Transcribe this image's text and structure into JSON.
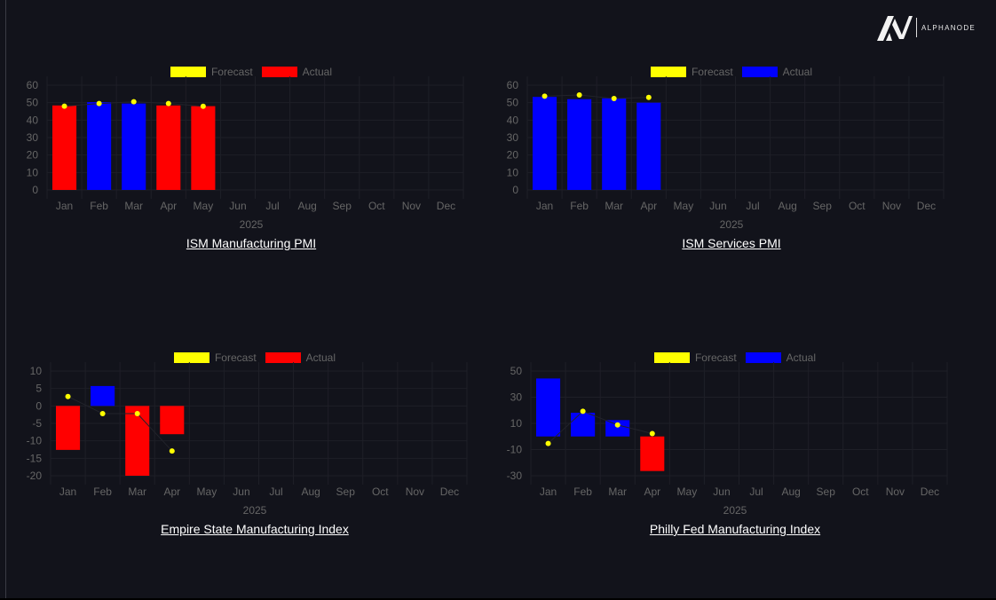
{
  "brand": {
    "name": "ALPHANODE",
    "logo_icon": "alphanode-logo-icon"
  },
  "colors": {
    "forecast": "#ffff00",
    "positive": "#0000ff",
    "negative": "#ff0000",
    "background": "#12131b",
    "grid": "#1e1f27",
    "text": "#666666"
  },
  "chart_data": [
    {
      "type": "bar",
      "title": "ISM Manufacturing PMI",
      "xlabel": "2025",
      "legend": [
        "Forecast",
        "Actual"
      ],
      "legend_placement": "top",
      "categories": [
        "Jan",
        "Feb",
        "Mar",
        "Apr",
        "May",
        "Jun",
        "Jul",
        "Aug",
        "Sep",
        "Oct",
        "Nov",
        "Dec"
      ],
      "yticks": [
        0,
        10,
        20,
        30,
        40,
        50,
        60
      ],
      "ylim": [
        0,
        60
      ],
      "grid": true,
      "actual": [
        48.4,
        50.3,
        49.5,
        48.4,
        48.0
      ],
      "actual_colors": [
        "#ff0000",
        "#0000ff",
        "#0000ff",
        "#ff0000",
        "#ff0000"
      ],
      "forecast": [
        48.0,
        49.5,
        50.5,
        49.5,
        47.9
      ]
    },
    {
      "type": "bar",
      "title": "ISM Services PMI",
      "xlabel": "2025",
      "legend": [
        "Forecast",
        "Actual"
      ],
      "legend_placement": "top",
      "categories": [
        "Jan",
        "Feb",
        "Mar",
        "Apr",
        "May",
        "Jun",
        "Jul",
        "Aug",
        "Sep",
        "Oct",
        "Nov",
        "Dec"
      ],
      "yticks": [
        0,
        10,
        20,
        30,
        40,
        50,
        60
      ],
      "ylim": [
        0,
        60
      ],
      "grid": true,
      "actual": [
        53.3,
        52.0,
        52.5,
        50.0
      ],
      "actual_colors": [
        "#0000ff",
        "#0000ff",
        "#0000ff",
        "#0000ff"
      ],
      "forecast": [
        53.7,
        54.4,
        52.4,
        53.0
      ]
    },
    {
      "type": "bar",
      "title": "Empire State Manufacturing Index",
      "xlabel": "2025",
      "legend": [
        "Forecast",
        "Actual"
      ],
      "legend_placement": "top",
      "categories": [
        "Jan",
        "Feb",
        "Mar",
        "Apr",
        "May",
        "Jun",
        "Jul",
        "Aug",
        "Sep",
        "Oct",
        "Nov",
        "Dec"
      ],
      "yticks": [
        -20,
        -15,
        -10,
        -5,
        0,
        5,
        10
      ],
      "ylim": [
        -20,
        10
      ],
      "grid": true,
      "actual": [
        -12.6,
        5.7,
        -20.0,
        -8.1
      ],
      "actual_colors": [
        "#ff0000",
        "#0000ff",
        "#ff0000",
        "#ff0000"
      ],
      "forecast": [
        2.7,
        -2.2,
        -2.2,
        -12.9
      ]
    },
    {
      "type": "bar",
      "title": "Philly Fed Manufacturing Index",
      "xlabel": "2025",
      "legend": [
        "Forecast",
        "Actual"
      ],
      "legend_placement": "top",
      "categories": [
        "Jan",
        "Feb",
        "Mar",
        "Apr",
        "May",
        "Jun",
        "Jul",
        "Aug",
        "Sep",
        "Oct",
        "Nov",
        "Dec"
      ],
      "yticks": [
        -30,
        -10,
        10,
        30,
        50
      ],
      "ylim": [
        -30,
        50
      ],
      "grid": true,
      "actual": [
        44.3,
        18.1,
        12.5,
        -26.4
      ],
      "actual_colors": [
        "#0000ff",
        "#0000ff",
        "#0000ff",
        "#ff0000"
      ],
      "forecast": [
        -5.3,
        19.2,
        8.8,
        2.2
      ]
    }
  ]
}
